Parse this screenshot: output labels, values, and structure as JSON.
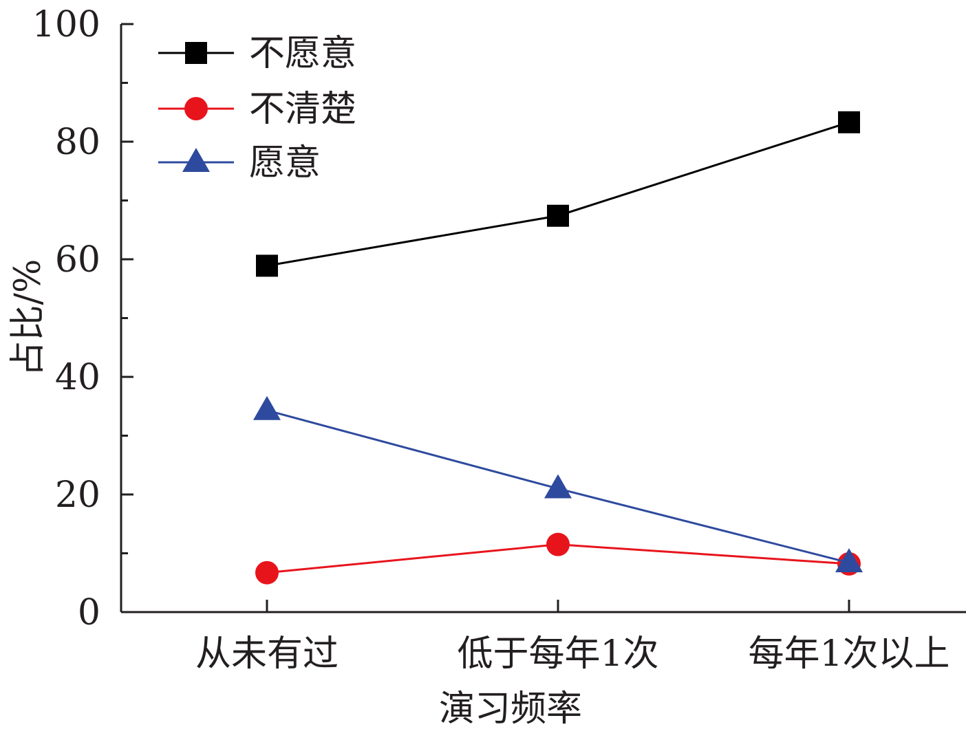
{
  "chart_data": {
    "type": "line",
    "title": "",
    "xlabel": "演习频率",
    "ylabel": "占比/%",
    "categories": [
      "从未有过",
      "低于每年1次",
      "每年1次以上"
    ],
    "ylim": [
      0,
      100
    ],
    "yticks": [
      0,
      20,
      40,
      60,
      80,
      100
    ],
    "y_minor_step": 10,
    "grid": false,
    "legend_position": "top-left",
    "series": [
      {
        "name": "不愿意",
        "values": [
          58.9,
          67.4,
          83.3
        ],
        "color": "#000000",
        "marker": "square"
      },
      {
        "name": "不清楚",
        "values": [
          6.7,
          11.5,
          8.2
        ],
        "color": "#e8141c",
        "marker": "circle"
      },
      {
        "name": "愿意",
        "values": [
          34.3,
          21.0,
          8.4
        ],
        "color": "#2e4a9e",
        "marker": "triangle"
      }
    ]
  }
}
